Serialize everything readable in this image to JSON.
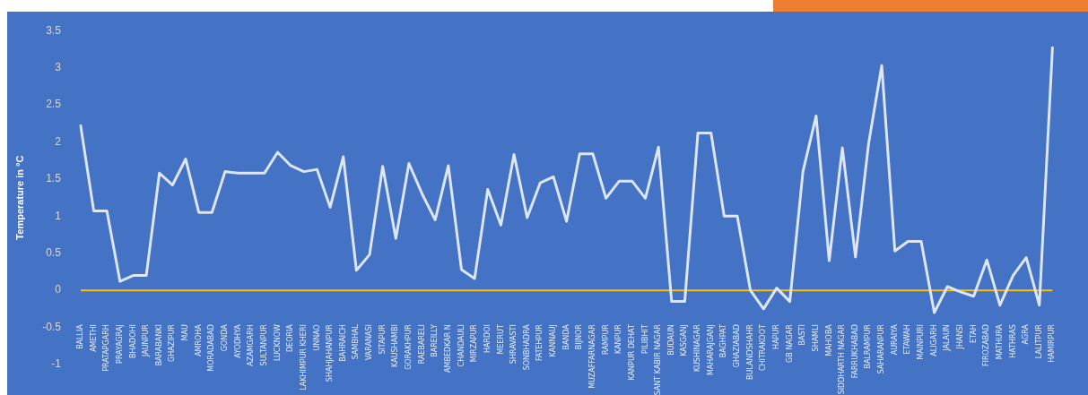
{
  "chart_data": {
    "type": "line",
    "ylabel": "Temperature in °C",
    "categories": [
      "BALLIA",
      "AMETHI",
      "PRATAPGARH",
      "PRAYAGRAJ",
      "BHADOHI",
      "JAUNPUR",
      "BARABANKI",
      "GHAZIPUR",
      "MAU",
      "AMROHA",
      "MORADABAD",
      "GONDA",
      "AYODHYA",
      "AZAMGARH",
      "SULTANPUR",
      "LUCKNOW",
      "DEORIA",
      "LAKHIMPUR KHERI",
      "UNNAO",
      "SHAHJAHANPUR",
      "BAHRAICH",
      "SAMBHAL",
      "VARANASI",
      "SITAPUR",
      "KAUSHAMBI",
      "GORAKHPUR",
      "RAEBARELI",
      "BAREILLY",
      "AMBEDKAR N",
      "CHANDAULI",
      "MIRZAPUR",
      "HARDOI",
      "MEERUT",
      "SHRAVASTI",
      "SONBHADRA",
      "FATEHPUR",
      "KANNAUJ",
      "BANDA",
      "BIJNOR",
      "MUZAFFARNAGAR",
      "RAMPUR",
      "KANPUR",
      "KANPUR DEHAT",
      "PILIBHIT",
      "SANT KABIR NAGAR",
      "BUDAUN",
      "KASGANJ",
      "KUSHINAGAR",
      "MAHARAJGANJ",
      "BAGHPAT",
      "GHAZIABAD",
      "BULANDSHAHR",
      "CHITRAKOOT",
      "HAPUR",
      "GB NAGAR",
      "BASTI",
      "SHAMLI",
      "MAHOBA",
      "SIDDHARTH NAGAR",
      "FARRUKHABAD",
      "BALRAMPUR",
      "SAHARANPUR",
      "AURAIYA",
      "ETAWAH",
      "MAINPURI",
      "ALIGARH",
      "JALAUN",
      "JHANSI",
      "ETAH",
      "FIROZABAD",
      "MATHURA",
      "HATHRAS",
      "AGRA",
      "LALITPUR",
      "HAMIRPUR"
    ],
    "series": [
      {
        "color": "#dce6f4",
        "values": [
          2.22,
          1.07,
          1.07,
          0.12,
          0.2,
          0.2,
          1.58,
          1.42,
          1.77,
          1.05,
          1.05,
          1.6,
          1.58,
          1.58,
          1.58,
          1.86,
          1.68,
          1.6,
          1.63,
          1.12,
          1.8,
          0.27,
          0.48,
          1.67,
          0.7,
          1.71,
          1.3,
          0.95,
          1.68,
          0.28,
          0.16,
          1.36,
          0.88,
          1.83,
          0.98,
          1.45,
          1.53,
          0.93,
          1.84,
          1.84,
          1.24,
          1.47,
          1.47,
          1.24,
          1.93,
          -0.15,
          -0.15,
          2.12,
          2.12,
          1.0,
          1.0,
          0.0,
          -0.25,
          0.03,
          -0.15,
          1.6,
          2.35,
          0.4,
          1.92,
          0.45,
          1.98,
          3.03,
          0.53,
          0.66,
          0.66,
          -0.3,
          0.05,
          -0.02,
          -0.08,
          0.41,
          -0.2,
          0.2,
          0.44,
          -0.2,
          3.27
        ]
      }
    ],
    "ylim": [
      -1,
      3.5
    ],
    "ref_lines": [
      {
        "axis": "y",
        "value": 0,
        "color": "#ffc000"
      }
    ],
    "yticks": [
      -1,
      -0.5,
      0,
      0.5,
      1,
      1.5,
      2,
      2.5,
      3,
      3.5
    ],
    "grid": false,
    "legend": false,
    "marker": "none",
    "line_style": "solid"
  }
}
